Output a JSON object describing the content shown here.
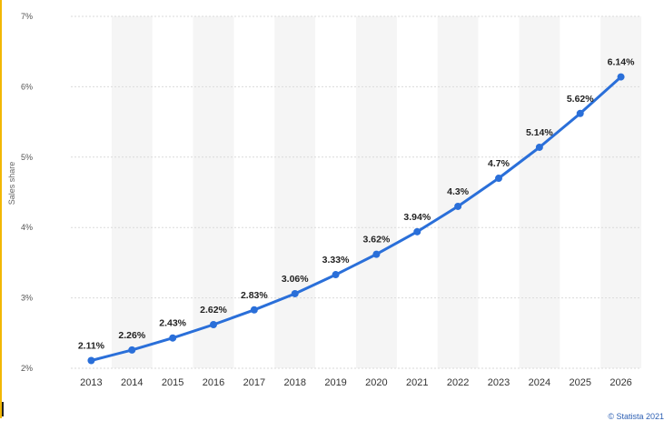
{
  "chart_data": {
    "type": "line",
    "title": "",
    "xlabel": "",
    "ylabel": "Sales share",
    "categories": [
      "2013",
      "2014",
      "2015",
      "2016",
      "2017",
      "2018",
      "2019",
      "2020",
      "2021",
      "2022",
      "2023",
      "2024",
      "2025",
      "2026"
    ],
    "series": [
      {
        "name": "Sales share",
        "values": [
          2.11,
          2.26,
          2.43,
          2.62,
          2.83,
          3.06,
          3.33,
          3.62,
          3.94,
          4.3,
          4.7,
          5.14,
          5.62,
          6.14
        ],
        "labels": [
          "2.11%",
          "2.26%",
          "2.43%",
          "2.62%",
          "2.83%",
          "3.06%",
          "3.33%",
          "3.62%",
          "3.94%",
          "4.3%",
          "4.7%",
          "5.14%",
          "5.62%",
          "6.14%"
        ]
      }
    ],
    "ylim": [
      2,
      7
    ],
    "yticks": [
      2,
      3,
      4,
      5,
      6,
      7
    ],
    "ytick_labels": [
      "2%",
      "3%",
      "4%",
      "5%",
      "6%",
      "7%"
    ],
    "grid": true,
    "line_color": "#2a6fd9",
    "band_color": "#f5f5f5"
  },
  "footer": {
    "credit": "© Statista 2021"
  }
}
